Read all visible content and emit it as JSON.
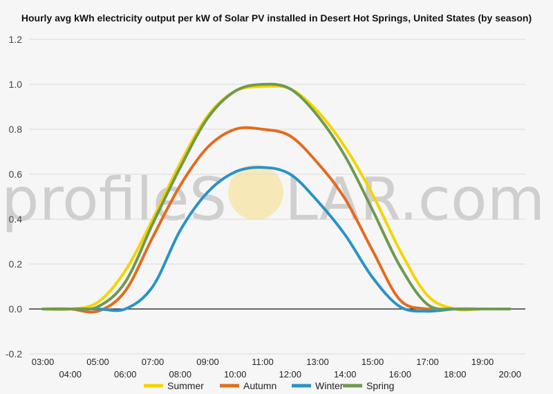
{
  "chart_data": {
    "type": "line",
    "title": "Hourly avg kWh electricity output per kW of Solar PV installed in Desert Hot Springs, United States (by season)",
    "xlabel": "",
    "ylabel": "",
    "ylim": [
      -0.2,
      1.2
    ],
    "yticks": [
      "-0.2",
      "0.0",
      "0.2",
      "0.4",
      "0.6",
      "0.8",
      "1.0",
      "1.2"
    ],
    "ytick_values": [
      -0.2,
      0.0,
      0.2,
      0.4,
      0.6,
      0.8,
      1.0,
      1.2
    ],
    "x": [
      "03:00",
      "04:00",
      "05:00",
      "06:00",
      "07:00",
      "08:00",
      "09:00",
      "10:00",
      "11:00",
      "12:00",
      "13:00",
      "14:00",
      "15:00",
      "16:00",
      "17:00",
      "18:00",
      "19:00",
      "20:00"
    ],
    "grid": true,
    "legend_position": "bottom",
    "series": [
      {
        "name": "Summer",
        "color": "#f5d400",
        "values": [
          0,
          0,
          0.03,
          0.17,
          0.4,
          0.65,
          0.86,
          0.97,
          0.99,
          0.98,
          0.88,
          0.72,
          0.51,
          0.26,
          0.06,
          0,
          0,
          0
        ]
      },
      {
        "name": "Autumn",
        "color": "#e36b1e",
        "values": [
          0,
          0,
          -0.01,
          0.08,
          0.32,
          0.55,
          0.72,
          0.8,
          0.8,
          0.77,
          0.65,
          0.49,
          0.26,
          0.04,
          0,
          0,
          0,
          0
        ]
      },
      {
        "name": "Winter",
        "color": "#2a93c4",
        "values": [
          0,
          0,
          0,
          0,
          0.1,
          0.35,
          0.52,
          0.61,
          0.63,
          0.6,
          0.48,
          0.33,
          0.14,
          0.01,
          -0.01,
          0,
          0,
          0
        ]
      },
      {
        "name": "Spring",
        "color": "#6e9a4e",
        "values": [
          0,
          0,
          0.01,
          0.12,
          0.38,
          0.63,
          0.85,
          0.97,
          1.0,
          0.98,
          0.86,
          0.68,
          0.44,
          0.19,
          0.02,
          0,
          0,
          0
        ]
      }
    ]
  },
  "watermark": {
    "left": "profileS",
    "right": "LAR.com"
  }
}
